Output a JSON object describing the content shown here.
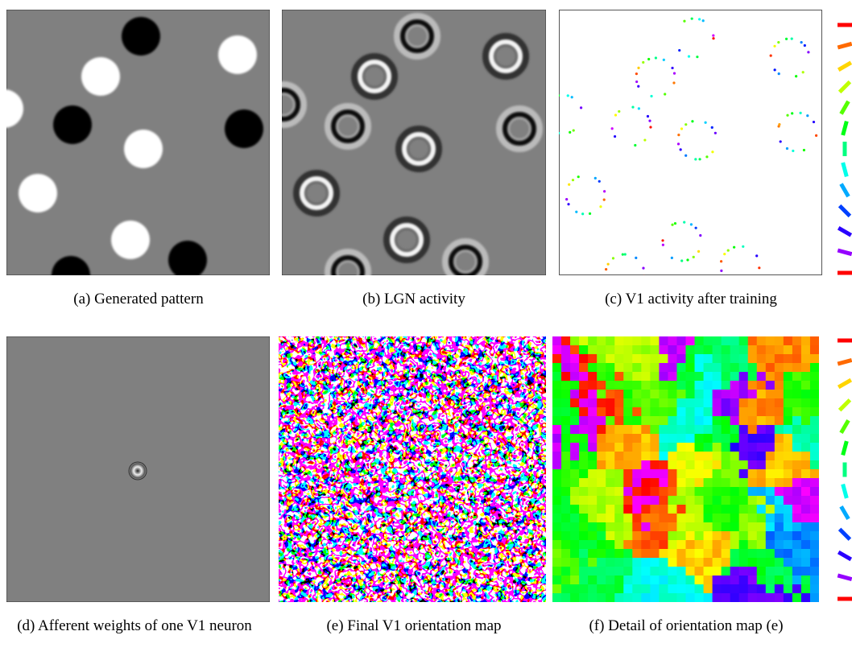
{
  "figure": {
    "captions": [
      "(a) Generated pattern",
      "(b) LGN activity",
      "(c) V1 activity after training",
      "(d) Afferent weights of one V1 neuron",
      "(e) Final V1 orientation map",
      "(f) Detail of orientation map (e)"
    ]
  }
}
